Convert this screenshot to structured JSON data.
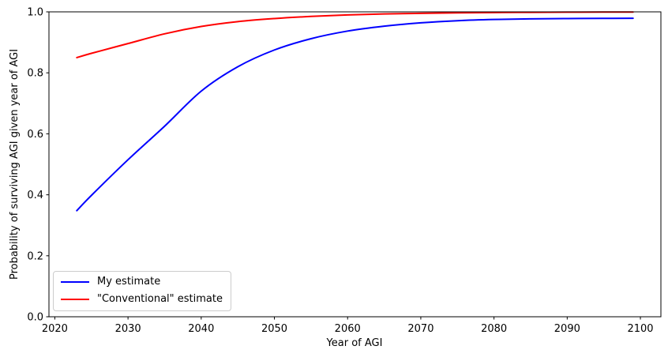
{
  "chart_data": {
    "type": "line",
    "title": "",
    "xlabel": "Year of AGI",
    "ylabel": "Probability of surviving AGI given year of AGI",
    "xlim": [
      2019.2,
      2102.8
    ],
    "ylim": [
      0.0,
      1.0
    ],
    "grid": false,
    "legend_position": "lower left",
    "background_color": "#ffffff",
    "axis_color": "#000000",
    "xticks": [
      2020,
      2030,
      2040,
      2050,
      2060,
      2070,
      2080,
      2090,
      2100
    ],
    "xtick_labels": [
      "2020",
      "2030",
      "2040",
      "2050",
      "2060",
      "2070",
      "2080",
      "2090",
      "2100"
    ],
    "yticks": [
      0.0,
      0.2,
      0.4,
      0.6,
      0.8,
      1.0
    ],
    "ytick_labels": [
      "0.0",
      "0.2",
      "0.4",
      "0.6",
      "0.8",
      "1.0"
    ],
    "x": [
      2023,
      2025,
      2030,
      2035,
      2040,
      2045,
      2050,
      2055,
      2060,
      2065,
      2070,
      2075,
      2080,
      2085,
      2090,
      2095,
      2099
    ],
    "series": [
      {
        "name": "My estimate",
        "color": "#0000ff",
        "values": [
          0.348,
          0.398,
          0.515,
          0.625,
          0.74,
          0.82,
          0.875,
          0.912,
          0.937,
          0.953,
          0.964,
          0.971,
          0.975,
          0.977,
          0.978,
          0.9785,
          0.979
        ]
      },
      {
        "name": "\"Conventional\" estimate",
        "color": "#ff0000",
        "values": [
          0.85,
          0.864,
          0.896,
          0.928,
          0.952,
          0.968,
          0.978,
          0.985,
          0.99,
          0.9932,
          0.9952,
          0.9967,
          0.9978,
          0.9985,
          0.999,
          0.9993,
          0.9995
        ]
      }
    ]
  }
}
